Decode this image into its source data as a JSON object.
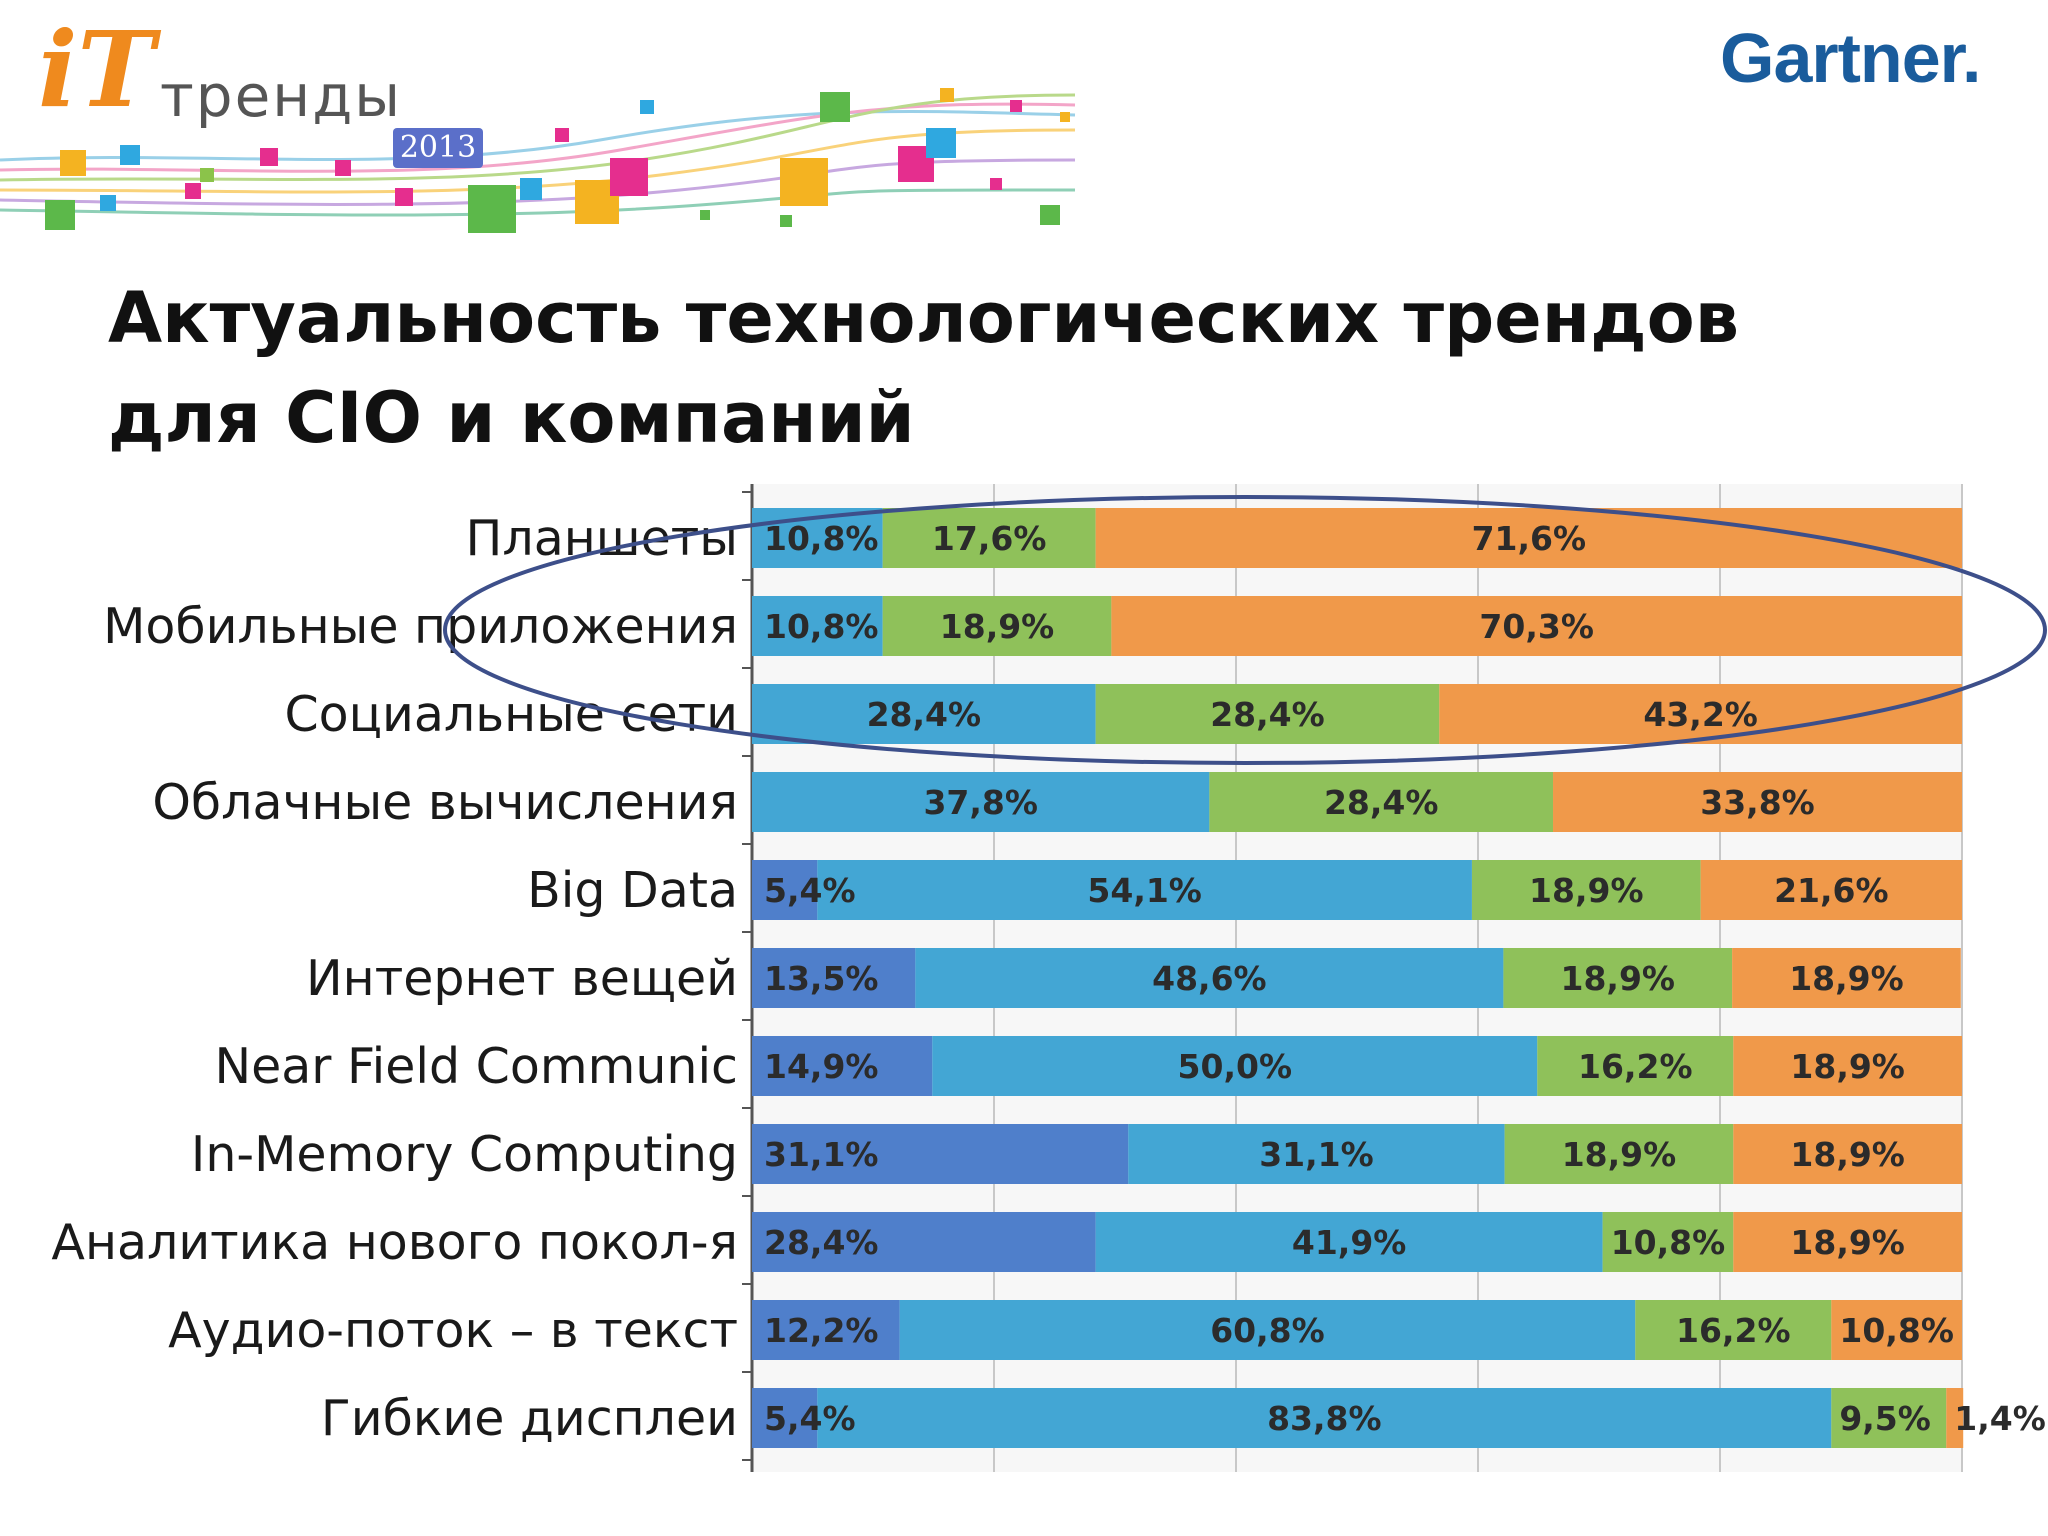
{
  "header": {
    "logo_it": "iT",
    "logo_text": "тренды",
    "logo_year": "2013",
    "brand": "Gartner."
  },
  "chart_data": {
    "type": "bar",
    "orientation": "horizontal",
    "stacked": true,
    "normalized_percent": true,
    "title": "Актуальность технологических трендов для CIO и компаний",
    "categories": [
      "Планшеты",
      "Мобильные приложения",
      "Социальные сети",
      "Облачные вычисления",
      "Big Data",
      "Интернет вещей",
      "Near Field Communic",
      "In-Memory Computing",
      "Аналитика нового покол-я",
      "Аудио-поток – в текст",
      "Гибкие дисплеи"
    ],
    "series": [
      {
        "color": "#4f7fcb",
        "values": [
          0,
          0,
          0,
          0,
          5.4,
          13.5,
          14.9,
          31.1,
          28.4,
          12.2,
          5.4
        ]
      },
      {
        "color": "#43a6d4",
        "values": [
          10.8,
          10.8,
          28.4,
          37.8,
          54.1,
          48.6,
          50.0,
          31.1,
          41.9,
          60.8,
          83.8
        ]
      },
      {
        "color": "#8fc15a",
        "values": [
          17.6,
          18.9,
          28.4,
          28.4,
          18.9,
          18.9,
          16.2,
          18.9,
          10.8,
          16.2,
          9.5
        ]
      },
      {
        "color": "#f0994a",
        "values": [
          71.6,
          70.3,
          43.2,
          33.8,
          21.6,
          18.9,
          18.9,
          18.9,
          18.9,
          10.8,
          1.4
        ]
      }
    ],
    "data_labels": [
      [
        "",
        "10,8%",
        "17,6%",
        "71,6%"
      ],
      [
        "",
        "10,8%",
        "18,9%",
        "70,3%"
      ],
      [
        "",
        "28,4%",
        "28,4%",
        "43,2%"
      ],
      [
        "",
        "37,8%",
        "28,4%",
        "33,8%"
      ],
      [
        "5,4%",
        "54,1%",
        "18,9%",
        "21,6%"
      ],
      [
        "13,5%",
        "48,6%",
        "18,9%",
        "18,9%"
      ],
      [
        "14,9%",
        "50,0%",
        "16,2%",
        "18,9%"
      ],
      [
        "31,1%",
        "31,1%",
        "18,9%",
        "18,9%"
      ],
      [
        "28,4%",
        "41,9%",
        "10,8%",
        "18,9%"
      ],
      [
        "12,2%",
        "60,8%",
        "16,2%",
        "10,8%"
      ],
      [
        "5,4%",
        "83,8%",
        "9,5%",
        "1,4%"
      ]
    ],
    "xlim": [
      0,
      100
    ],
    "grid": true,
    "annotation": "ellipse around first three rows"
  }
}
